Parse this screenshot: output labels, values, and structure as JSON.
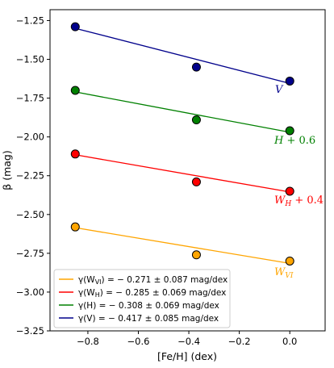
{
  "chart_data": {
    "type": "scatter",
    "xlabel": "[Fe/H] (dex)",
    "ylabel": "β (mag)",
    "xlim": [
      -0.95,
      0.14
    ],
    "ylim": [
      -3.25,
      -1.18
    ],
    "xticks": [
      -0.8,
      -0.6,
      -0.4,
      -0.2,
      0.0
    ],
    "xtick_labels": [
      "−0.8",
      "−0.6",
      "−0.4",
      "−0.2",
      "0.0"
    ],
    "yticks": [
      -3.25,
      -3.0,
      -2.75,
      -2.5,
      -2.25,
      -2.0,
      -1.75,
      -1.5,
      -1.25
    ],
    "ytick_labels": [
      "−3.25",
      "−3.00",
      "−2.75",
      "−2.50",
      "−2.25",
      "−2.00",
      "−1.75",
      "−1.50",
      "−1.25"
    ],
    "grid": false,
    "legend_position": "lower-left",
    "series": [
      {
        "name": "V",
        "label_on_plot": "V",
        "legend_label": "γ(V)    = − 0.417 ± 0.085 mag/dex",
        "color": "#00008b",
        "x": [
          -0.85,
          -0.37,
          0.0
        ],
        "y": [
          -1.29,
          -1.55,
          -1.64
        ],
        "fit": {
          "x": [
            -0.85,
            0.0
          ],
          "y": [
            -1.3,
            -1.655
          ]
        }
      },
      {
        "name": "H + 0.6",
        "label_on_plot": "H + 0.6",
        "legend_label": "γ(H)    = − 0.308 ± 0.069 mag/dex",
        "color": "#008000",
        "x": [
          -0.85,
          -0.37,
          0.0
        ],
        "y": [
          -1.7,
          -1.89,
          -1.96
        ],
        "fit": {
          "x": [
            -0.85,
            0.0
          ],
          "y": [
            -1.71,
            -1.97
          ]
        }
      },
      {
        "name": "W_H + 0.4",
        "label_on_plot": "W_H + 0.4",
        "legend_label": "γ(W_H) = − 0.285 ± 0.069 mag/dex",
        "color": "#ff0000",
        "x": [
          -0.85,
          -0.37,
          0.0
        ],
        "y": [
          -2.11,
          -2.29,
          -2.35
        ],
        "fit": {
          "x": [
            -0.85,
            0.0
          ],
          "y": [
            -2.115,
            -2.355
          ]
        }
      },
      {
        "name": "W_VI",
        "label_on_plot": "W_VI",
        "legend_label": "γ(W_VI) = − 0.271 ± 0.087 mag/dex",
        "color": "#ffa500",
        "x": [
          -0.85,
          -0.37,
          0.0
        ],
        "y": [
          -2.58,
          -2.76,
          -2.8
        ],
        "fit": {
          "x": [
            -0.85,
            0.0
          ],
          "y": [
            -2.585,
            -2.815
          ]
        }
      }
    ],
    "legend_order": [
      "W_VI",
      "W_H + 0.4",
      "H + 0.6",
      "V"
    ]
  }
}
